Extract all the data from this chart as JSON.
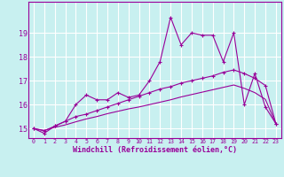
{
  "xlabel": "Windchill (Refroidissement éolien,°C)",
  "bg_color": "#c8f0f0",
  "grid_color": "#ffffff",
  "line_color": "#990099",
  "xlim": [
    -0.5,
    23.5
  ],
  "ylim": [
    14.6,
    20.3
  ],
  "xticks": [
    0,
    1,
    2,
    3,
    4,
    5,
    6,
    7,
    8,
    9,
    10,
    11,
    12,
    13,
    14,
    15,
    16,
    17,
    18,
    19,
    20,
    21,
    22,
    23
  ],
  "yticks": [
    15,
    16,
    17,
    18,
    19
  ],
  "line1_x": [
    0,
    1,
    2,
    3,
    4,
    5,
    6,
    7,
    8,
    9,
    10,
    11,
    12,
    13,
    14,
    15,
    16,
    17,
    18,
    19,
    20,
    21,
    22,
    23
  ],
  "line1_y": [
    15.0,
    14.8,
    15.1,
    15.3,
    16.0,
    16.4,
    16.2,
    16.2,
    16.5,
    16.3,
    16.4,
    17.0,
    17.8,
    19.65,
    18.5,
    19.0,
    18.9,
    18.9,
    17.8,
    19.0,
    16.0,
    17.3,
    15.9,
    15.2
  ],
  "line2_x": [
    0,
    1,
    2,
    3,
    4,
    5,
    6,
    7,
    8,
    9,
    10,
    11,
    12,
    13,
    14,
    15,
    16,
    17,
    18,
    19,
    20,
    21,
    22,
    23
  ],
  "line2_y": [
    15.0,
    14.9,
    15.1,
    15.3,
    15.5,
    15.6,
    15.75,
    15.9,
    16.05,
    16.2,
    16.35,
    16.5,
    16.65,
    16.75,
    16.9,
    17.0,
    17.1,
    17.2,
    17.35,
    17.45,
    17.3,
    17.1,
    16.8,
    15.2
  ],
  "line3_x": [
    0,
    1,
    2,
    3,
    4,
    5,
    6,
    7,
    8,
    9,
    10,
    11,
    12,
    13,
    14,
    15,
    16,
    17,
    18,
    19,
    20,
    21,
    22,
    23
  ],
  "line3_y": [
    15.0,
    14.92,
    15.05,
    15.15,
    15.28,
    15.4,
    15.5,
    15.62,
    15.72,
    15.82,
    15.9,
    16.0,
    16.1,
    16.2,
    16.32,
    16.42,
    16.52,
    16.62,
    16.72,
    16.82,
    16.68,
    16.5,
    16.22,
    15.2
  ],
  "line1_marker": true,
  "line2_marker": true,
  "line3_marker": false
}
